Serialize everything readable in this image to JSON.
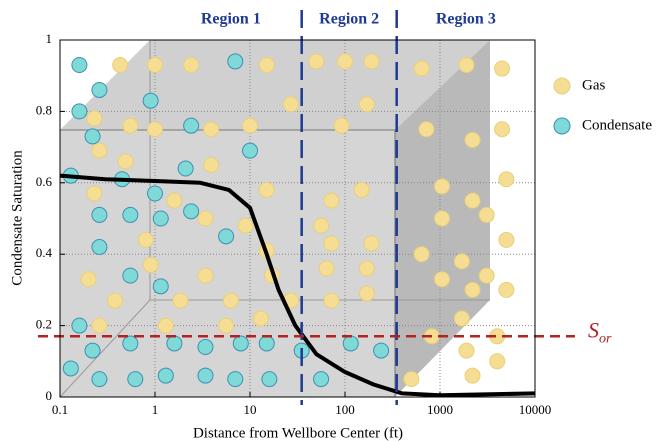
{
  "chart_data": {
    "type": "scatter",
    "xlabel": "Distance from Wellbore Center (ft)",
    "ylabel": "Condensate Saturation",
    "xscale": "log",
    "xlim": [
      0.1,
      10000
    ],
    "ylim": [
      0,
      1
    ],
    "xticks": [
      0.1,
      1,
      10,
      100,
      1000,
      10000
    ],
    "yticks": [
      0,
      0.2,
      0.4,
      0.6,
      0.8,
      1
    ],
    "grid": true,
    "legend": "right",
    "series": [
      {
        "name": "Gas",
        "color": "#f5dd93",
        "x": [
          0.43,
          1.0,
          2.4,
          15,
          50,
          100,
          190,
          640,
          1900,
          4500,
          0.23,
          0.55,
          1.0,
          3.9,
          10,
          27,
          92,
          170,
          720,
          2200,
          4500,
          0.26,
          0.49,
          3.9,
          15,
          72,
          150,
          1050,
          2200,
          5000,
          0.23,
          1.6,
          3.4,
          9.0,
          56,
          1050,
          3100,
          5000,
          0.8,
          15,
          72,
          190,
          640,
          1700,
          0.2,
          0.9,
          3.4,
          17,
          64,
          170,
          1050,
          3100,
          0.38,
          1.85,
          6.3,
          27,
          72,
          170,
          2200,
          5000,
          0.26,
          1.3,
          5.6,
          13,
          1700,
          820,
          4000,
          1900,
          4000,
          500,
          2200
        ],
        "values": [
          0.93,
          0.93,
          0.93,
          0.93,
          0.94,
          0.94,
          0.94,
          0.92,
          0.93,
          0.92,
          0.78,
          0.76,
          0.75,
          0.75,
          0.76,
          0.82,
          0.76,
          0.82,
          0.75,
          0.72,
          0.75,
          0.69,
          0.66,
          0.65,
          0.58,
          0.55,
          0.58,
          0.59,
          0.55,
          0.61,
          0.57,
          0.55,
          0.5,
          0.48,
          0.48,
          0.5,
          0.51,
          0.44,
          0.44,
          0.41,
          0.43,
          0.43,
          0.4,
          0.38,
          0.33,
          0.37,
          0.34,
          0.34,
          0.36,
          0.36,
          0.33,
          0.34,
          0.27,
          0.27,
          0.27,
          0.27,
          0.27,
          0.29,
          0.3,
          0.3,
          0.2,
          0.2,
          0.2,
          0.22,
          0.22,
          0.17,
          0.17,
          0.13,
          0.1,
          0.05,
          0.06
        ]
      },
      {
        "name": "Condensate",
        "color": "#7fd9d6",
        "x": [
          0.16,
          0.26,
          0.16,
          0.22,
          0.13,
          0.45,
          1.0,
          2.1,
          5.6,
          0.26,
          0.55,
          1.15,
          2.4,
          0.26,
          0.55,
          1.15,
          0.16,
          0.22,
          0.55,
          1.6,
          3.4,
          8,
          15,
          35,
          56,
          115,
          240,
          0.13,
          0.26,
          0.62,
          1.3,
          3.4,
          7,
          16,
          2.4,
          10,
          7,
          0.9
        ],
        "values": [
          0.93,
          0.86,
          0.8,
          0.73,
          0.62,
          0.61,
          0.57,
          0.64,
          0.45,
          0.51,
          0.51,
          0.5,
          0.52,
          0.42,
          0.34,
          0.31,
          0.2,
          0.13,
          0.15,
          0.15,
          0.14,
          0.15,
          0.15,
          0.13,
          0.05,
          0.15,
          0.13,
          0.08,
          0.05,
          0.05,
          0.06,
          0.06,
          0.05,
          0.05,
          0.76,
          0.69,
          0.94,
          0.83
        ]
      }
    ],
    "profile": {
      "color": "#000000",
      "x": [
        0.1,
        0.3,
        1,
        3,
        6,
        10,
        15,
        20,
        30,
        50,
        100,
        200,
        400,
        1000,
        10000
      ],
      "values": [
        0.62,
        0.61,
        0.605,
        0.6,
        0.58,
        0.53,
        0.4,
        0.3,
        0.2,
        0.12,
        0.07,
        0.035,
        0.01,
        0.005,
        0.01
      ]
    },
    "sor": {
      "value": 0.17,
      "label": "S",
      "label_sub": "or",
      "color": "#b22222"
    },
    "region_boundaries": [
      35,
      350
    ],
    "regions": [
      "Region 1",
      "Region 2",
      "Region 3"
    ],
    "region_color": "#1f3a93"
  }
}
